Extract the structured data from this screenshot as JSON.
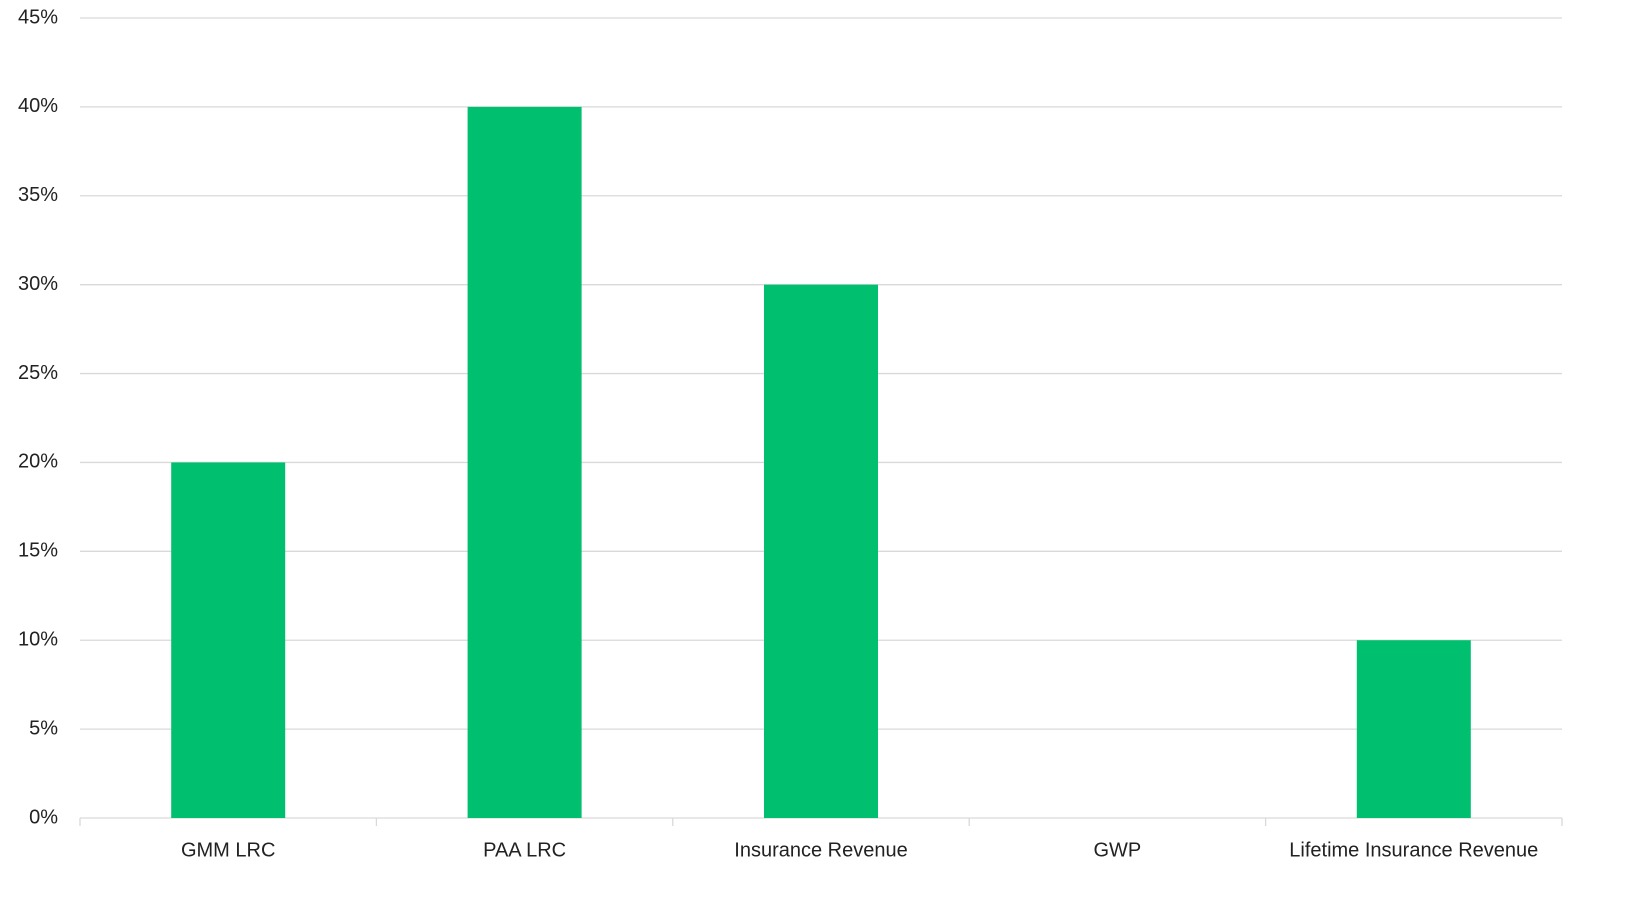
{
  "chart_data": {
    "type": "bar",
    "categories": [
      "GMM LRC",
      "PAA LRC",
      "Insurance Revenue",
      "GWP",
      "Lifetime Insurance Revenue"
    ],
    "values": [
      20,
      40,
      30,
      0,
      10
    ],
    "color": "#00bf6f",
    "ylim": [
      0,
      45
    ],
    "yticks": [
      {
        "value": 0,
        "label": "0%"
      },
      {
        "value": 5,
        "label": "5%"
      },
      {
        "value": 10,
        "label": "10%"
      },
      {
        "value": 15,
        "label": "15%"
      },
      {
        "value": 20,
        "label": "20%"
      },
      {
        "value": 25,
        "label": "25%"
      },
      {
        "value": 30,
        "label": "30%"
      },
      {
        "value": 35,
        "label": "35%"
      },
      {
        "value": 40,
        "label": "40%"
      },
      {
        "value": 45,
        "label": "45%"
      }
    ],
    "grid": true
  }
}
